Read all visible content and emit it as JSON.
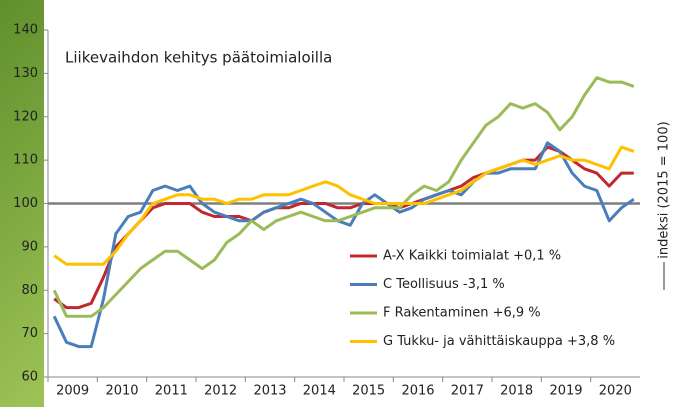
{
  "chart_data": {
    "type": "line",
    "title": "Liikevaihdon kehitys päätoimialoilla",
    "y_label": "indeksi (2015 = 100)",
    "reference_line": 100,
    "categories": [
      "2009",
      null,
      null,
      null,
      "2010",
      null,
      null,
      null,
      "2011",
      null,
      null,
      null,
      "2012",
      null,
      null,
      null,
      "2013",
      null,
      null,
      null,
      "2014",
      null,
      null,
      null,
      "2015",
      null,
      null,
      null,
      "2016",
      null,
      null,
      null,
      "2017",
      null,
      null,
      null,
      "2018",
      null,
      null,
      null,
      "2019",
      null,
      null,
      null,
      "2020",
      null,
      null,
      null
    ],
    "ylim": [
      60,
      140
    ],
    "yticks": [
      60,
      70,
      80,
      90,
      100,
      110,
      120,
      130,
      140
    ],
    "series": [
      {
        "name": "A-X Kaikki toimialat +0,1 %",
        "color": "#c0282d",
        "values": [
          78,
          76,
          76,
          77,
          83,
          90,
          93,
          96,
          99,
          100,
          100,
          100,
          98,
          97,
          97,
          97,
          96,
          98,
          99,
          99,
          100,
          100,
          100,
          99,
          99,
          100,
          100,
          100,
          99,
          100,
          101,
          102,
          103,
          104,
          106,
          107,
          108,
          109,
          110,
          110,
          113,
          112,
          110,
          108,
          107,
          104,
          107,
          107
        ]
      },
      {
        "name": "C Teollisuus -3,1 %",
        "color": "#4a7ebb",
        "values": [
          74,
          68,
          67,
          67,
          78,
          93,
          97,
          98,
          103,
          104,
          103,
          104,
          100,
          98,
          97,
          96,
          96,
          98,
          99,
          100,
          101,
          100,
          98,
          96,
          95,
          100,
          102,
          100,
          98,
          99,
          101,
          102,
          103,
          102,
          105,
          107,
          107,
          108,
          108,
          108,
          114,
          112,
          107,
          104,
          103,
          96,
          99,
          101
        ]
      },
      {
        "name": "F Rakentaminen +6,9 %",
        "color": "#9bbb59",
        "values": [
          80,
          74,
          74,
          74,
          76,
          79,
          82,
          85,
          87,
          89,
          89,
          87,
          85,
          87,
          91,
          93,
          96,
          94,
          96,
          97,
          98,
          97,
          96,
          96,
          97,
          98,
          99,
          99,
          99,
          102,
          104,
          103,
          105,
          110,
          114,
          118,
          120,
          123,
          122,
          123,
          121,
          117,
          120,
          125,
          129,
          128,
          128,
          127
        ]
      },
      {
        "name": "G Tukku- ja vähittäiskauppa +3,8 %",
        "color": "#ffc000",
        "values": [
          88,
          86,
          86,
          86,
          86,
          89,
          93,
          96,
          100,
          101,
          102,
          102,
          101,
          101,
          100,
          101,
          101,
          102,
          102,
          102,
          103,
          104,
          105,
          104,
          102,
          101,
          100,
          100,
          100,
          100,
          100,
          101,
          102,
          103,
          105,
          107,
          108,
          109,
          110,
          109,
          110,
          111,
          110,
          110,
          109,
          108,
          113,
          112
        ]
      }
    ]
  }
}
